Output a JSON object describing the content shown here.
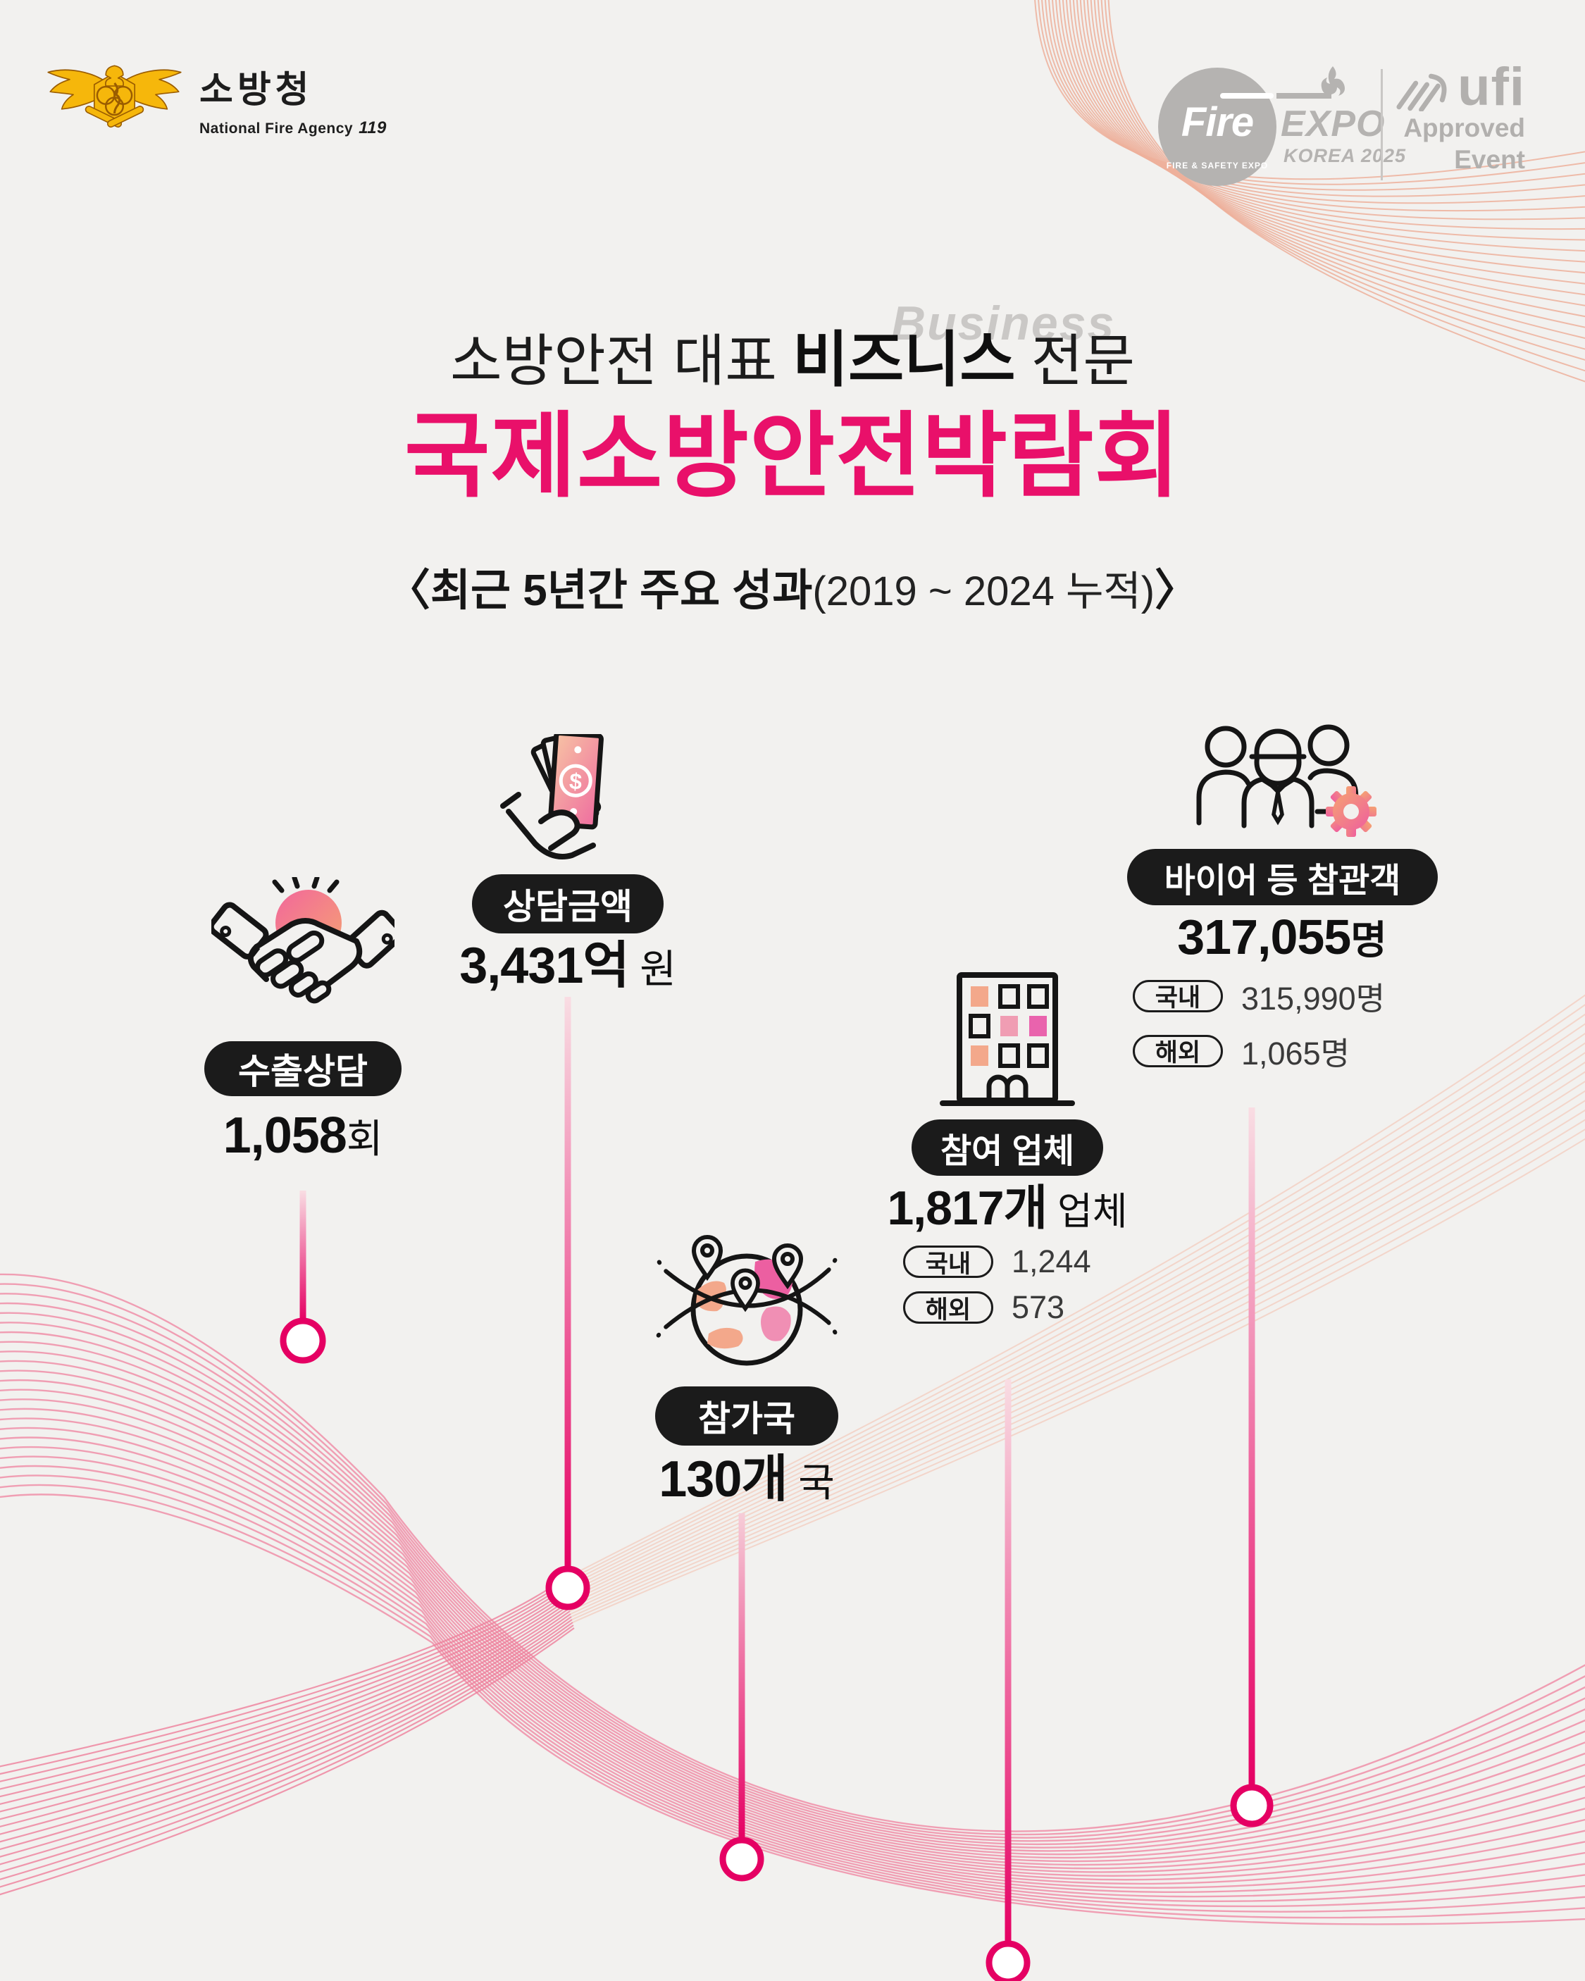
{
  "canvas": {
    "background": "#f2f1ef",
    "accent_magenta": "#e50063",
    "title_pink": "#e9106a",
    "wave_salmon": "#edb09b",
    "wave_pink": "#ef8aa4"
  },
  "header": {
    "nfa": {
      "logo_icon": "national-fire-agency-emblem",
      "title": "소방청",
      "subtitle": "National Fire  Agency",
      "badge": "119"
    },
    "fire_expo": {
      "fire": "Fire",
      "expo": "EXPO",
      "tagline": "FIRE & SAFETY EXPO",
      "edition": "KOREA 2025"
    },
    "ufi": {
      "brand": "ufi",
      "line1": "Approved",
      "line2": "Event"
    }
  },
  "hero": {
    "watermark": "Business",
    "eyebrow_pre": "소방안전 대표 ",
    "eyebrow_bold": "비즈니스",
    "eyebrow_post": " 전문",
    "title": "국제소방안전박람회",
    "period_open": "〈",
    "period_bold": "최근 5년간 주요 성과",
    "period_light": "(2019 ~ 2024 누적)",
    "period_close": "〉"
  },
  "stats": [
    {
      "icon": "handshake-icon",
      "label": "수출상담",
      "value": "1,058",
      "unit": "회"
    },
    {
      "icon": "money-in-hand-icon",
      "label": "상담금액",
      "value": "3,431억",
      "unit": " 원"
    },
    {
      "icon": "globe-pins-icon",
      "label": "참가국",
      "value": "130개",
      "unit": " 국"
    },
    {
      "icon": "building-icon",
      "label": "참여 업체",
      "value": "1,817개",
      "unit": " 업체",
      "sub": [
        {
          "tag": "국내",
          "val": "1,244"
        },
        {
          "tag": "해외",
          "val": "573"
        }
      ]
    },
    {
      "icon": "people-gear-icon",
      "label": "바이어 등 참관객",
      "value": "317,055",
      "unit": "명",
      "sub": [
        {
          "tag": "국내",
          "val": "315,990명"
        },
        {
          "tag": "해외",
          "val": "1,065명"
        }
      ]
    }
  ]
}
